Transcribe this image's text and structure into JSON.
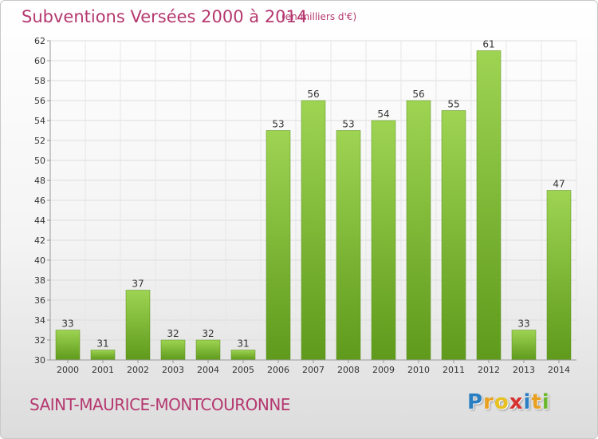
{
  "chart_data": {
    "type": "bar",
    "title": "Subventions Versées 2000 à 2014",
    "subtitle": "(en milliers d'€)",
    "categories": [
      "2000",
      "2001",
      "2002",
      "2003",
      "2004",
      "2005",
      "2006",
      "2007",
      "2008",
      "2009",
      "2010",
      "2011",
      "2012",
      "2013",
      "2014"
    ],
    "values": [
      33,
      31,
      37,
      32,
      32,
      31,
      53,
      56,
      53,
      54,
      56,
      55,
      61,
      33,
      47
    ],
    "ylim": [
      30,
      62
    ],
    "yticks": [
      30,
      32,
      34,
      36,
      38,
      40,
      42,
      44,
      46,
      48,
      50,
      52,
      54,
      56,
      58,
      60,
      62
    ],
    "grid": true,
    "bar_color": "#7ab82e"
  },
  "commune": "SAINT-MAURICE-MONTCOURONNE",
  "logo": {
    "letters": [
      "P",
      "r",
      "o",
      "x",
      "i",
      "t",
      "i"
    ],
    "colors": [
      "#2a7fc2",
      "#e8a020",
      "#e8c020",
      "#d83030",
      "#2a7fc2",
      "#e8a020",
      "#6ab82e"
    ]
  }
}
